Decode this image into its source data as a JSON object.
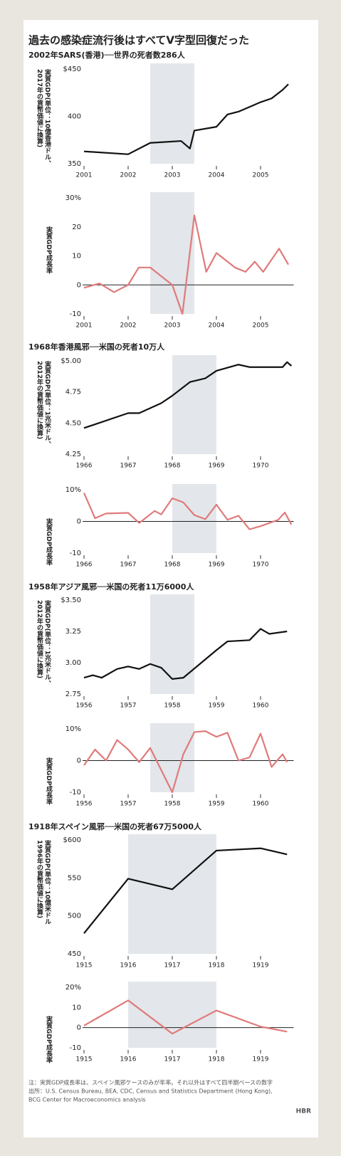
{
  "title": "過去の感染症流行後はすべてV字型回復だった",
  "notes": [
    "注：実質GDP成長率は、スペイン風邪ケースのみが年率。それ以外はすべて四半期ベースの数字",
    "出所：U.S. Census Bureau, BEA, CDC, Census and Statistics Department (Hong Kong),",
    "BCG Center for Macroeconomics analysis"
  ],
  "logo": "HBR",
  "chart_data": [
    {
      "type": "line",
      "title": "2002年SARS(香港)──世界の死者数286人",
      "ylabel": [
        "実質GDP(単位：10億香港ドル、",
        "2017年の貨幣価値に換算)"
      ],
      "color": "#111111",
      "shade": [
        2002.5,
        2003.5
      ],
      "x": [
        2001,
        2002,
        2002.5,
        2003.2,
        2003.4,
        2003.5,
        2004,
        2004.25,
        2004.5,
        2004.75,
        2005,
        2005.25,
        2005.5,
        2005.63
      ],
      "values": [
        363,
        360,
        372,
        374,
        366,
        385,
        389,
        402,
        405,
        410,
        415,
        419,
        428,
        434
      ],
      "xlim": [
        2001,
        2005.75
      ],
      "xticks": [
        2001,
        2002,
        2003,
        2004,
        2005
      ],
      "ylim": [
        350,
        450
      ],
      "yticks": [
        350,
        400,
        {
          "value": 450,
          "label": "$450"
        }
      ]
    },
    {
      "type": "line",
      "ylabel": [
        "実質GDP成長率"
      ],
      "color": "#e07a7a",
      "shade": [
        2002.5,
        2003.5
      ],
      "hline": 0,
      "x": [
        2001,
        2001.35,
        2001.68,
        2002,
        2002.24,
        2002.5,
        2003,
        2003.23,
        2003.5,
        2003.77,
        2004,
        2004.42,
        2004.66,
        2004.87,
        2005.06,
        2005.42,
        2005.63
      ],
      "values": [
        -1,
        0.5,
        -2.5,
        0,
        6,
        6,
        0,
        -10,
        24,
        4.5,
        11,
        6,
        4.5,
        8,
        4.5,
        12.5,
        7
      ],
      "xlim": [
        2001,
        2005.75
      ],
      "xticks": [
        2001,
        2002,
        2003,
        2004,
        2005
      ],
      "ylim": [
        -10,
        30
      ],
      "yticks": [
        -10,
        0,
        10,
        20,
        {
          "value": 30,
          "label": "30%"
        }
      ]
    },
    {
      "type": "line",
      "title": "1968年香港風邪──米国の死者10万人",
      "ylabel": [
        "実質GDP(単位：1兆米ドル、",
        "2012年の貨幣価値に換算)"
      ],
      "color": "#111111",
      "shade": [
        1968,
        1969
      ],
      "x": [
        1966,
        1967,
        1967.25,
        1967.75,
        1968,
        1968.4,
        1968.75,
        1969,
        1969.5,
        1969.75,
        1970,
        1970.5,
        1970.6,
        1970.7
      ],
      "values": [
        4.46,
        4.58,
        4.58,
        4.66,
        4.72,
        4.83,
        4.86,
        4.92,
        4.97,
        4.95,
        4.95,
        4.95,
        4.99,
        4.96
      ],
      "xlim": [
        1966,
        1970.75
      ],
      "xticks": [
        1966,
        1967,
        1968,
        1969,
        1970
      ],
      "ylim": [
        4.25,
        5
      ],
      "yticks": [
        {
          "value": 4.25,
          "label": "4.25"
        },
        {
          "value": 4.5,
          "label": "4.50"
        },
        {
          "value": 4.75,
          "label": "4.75"
        },
        {
          "value": 5,
          "label": "$5.00"
        }
      ]
    },
    {
      "type": "line",
      "ylabel": [
        "実質GDP成長率"
      ],
      "color": "#e07a7a",
      "shade": [
        1968,
        1969
      ],
      "hline": 0,
      "x": [
        1966,
        1966.25,
        1966.5,
        1967,
        1967.25,
        1967.6,
        1967.75,
        1968,
        1968.25,
        1968.5,
        1968.75,
        1969,
        1969.25,
        1969.5,
        1969.75,
        1970,
        1970.4,
        1970.55,
        1970.7
      ],
      "values": [
        9,
        1,
        2.5,
        2.7,
        -0.5,
        3.3,
        2.2,
        7.3,
        6,
        2,
        0.7,
        5.3,
        0.5,
        1.8,
        -2.5,
        -1.5,
        0.5,
        2.8,
        -1
      ],
      "xlim": [
        1966,
        1970.75
      ],
      "xticks": [
        1966,
        1967,
        1968,
        1969,
        1970
      ],
      "ylim": [
        -10,
        10
      ],
      "yticks": [
        -10,
        0,
        {
          "value": 10,
          "label": "10%"
        }
      ]
    },
    {
      "type": "line",
      "title": "1958年アジア風邪──米国の死者11万6000人",
      "ylabel": [
        "実質GDP(単位：1兆米ドル、",
        "2012年の貨幣価値に換算)"
      ],
      "color": "#111111",
      "shade": [
        1957.5,
        1958.5
      ],
      "x": [
        1956,
        1956.2,
        1956.4,
        1956.75,
        1957,
        1957.25,
        1957.5,
        1957.75,
        1958,
        1958.25,
        1959,
        1959.25,
        1959.75,
        1960,
        1960.2,
        1960.6
      ],
      "values": [
        2.88,
        2.9,
        2.88,
        2.95,
        2.97,
        2.95,
        2.99,
        2.96,
        2.87,
        2.88,
        3.1,
        3.17,
        3.18,
        3.27,
        3.23,
        3.25
      ],
      "xlim": [
        1956,
        1960.75
      ],
      "xticks": [
        1956,
        1957,
        1958,
        1959,
        1960
      ],
      "ylim": [
        2.75,
        3.5
      ],
      "yticks": [
        2.75,
        {
          "value": 3,
          "label": "3.00"
        },
        3.25,
        {
          "value": 3.5,
          "label": "$3.50"
        }
      ]
    },
    {
      "type": "line",
      "ylabel": [
        "実質GDP成長率"
      ],
      "color": "#e07a7a",
      "shade": [
        1957.5,
        1958.5
      ],
      "hline": 0,
      "x": [
        1956,
        1956.25,
        1956.5,
        1956.75,
        1957,
        1957.25,
        1957.5,
        1957.75,
        1958,
        1958.25,
        1958.5,
        1958.75,
        1959,
        1959.25,
        1959.5,
        1959.75,
        1960,
        1960.25,
        1960.5,
        1960.6
      ],
      "values": [
        -1.5,
        3.5,
        0,
        6.5,
        3.5,
        -0.5,
        4,
        -3,
        -10,
        2,
        9,
        9.3,
        7.5,
        8.8,
        0,
        1,
        8.5,
        -2,
        2,
        -0.5
      ],
      "xlim": [
        1956,
        1960.75
      ],
      "xticks": [
        1956,
        1957,
        1958,
        1959,
        1960
      ],
      "ylim": [
        -10,
        10
      ],
      "yticks": [
        -10,
        0,
        {
          "value": 10,
          "label": "10%"
        }
      ]
    },
    {
      "type": "line",
      "title": "1918年スペイン風邪──米国の死者67万5000人",
      "ylabel": [
        "実質GDP(単位：10億米ドル",
        "1996年の貨幣価値に換算)"
      ],
      "color": "#111111",
      "shade": [
        1916,
        1918
      ],
      "x": [
        1915,
        1916,
        1917,
        1918,
        1919,
        1919.6
      ],
      "values": [
        477,
        549,
        535,
        586,
        589,
        581
      ],
      "xlim": [
        1915,
        1919.75
      ],
      "xticks": [
        1915,
        1916,
        1917,
        1918,
        1919
      ],
      "ylim": [
        450,
        600
      ],
      "yticks": [
        450,
        500,
        550,
        {
          "value": 600,
          "label": "$600"
        }
      ]
    },
    {
      "type": "line",
      "ylabel": [
        "実質GDP成長率"
      ],
      "color": "#e07a7a",
      "shade": [
        1916,
        1918
      ],
      "hline": 0,
      "x": [
        1915,
        1916,
        1917,
        1918,
        1919,
        1919.6
      ],
      "values": [
        1,
        13.5,
        -3,
        8.5,
        0.5,
        -2
      ],
      "xlim": [
        1915,
        1919.75
      ],
      "xticks": [
        1915,
        1916,
        1917,
        1918,
        1919
      ],
      "ylim": [
        -10,
        20
      ],
      "yticks": [
        -10,
        0,
        10,
        {
          "value": 20,
          "label": "20%"
        }
      ]
    }
  ]
}
